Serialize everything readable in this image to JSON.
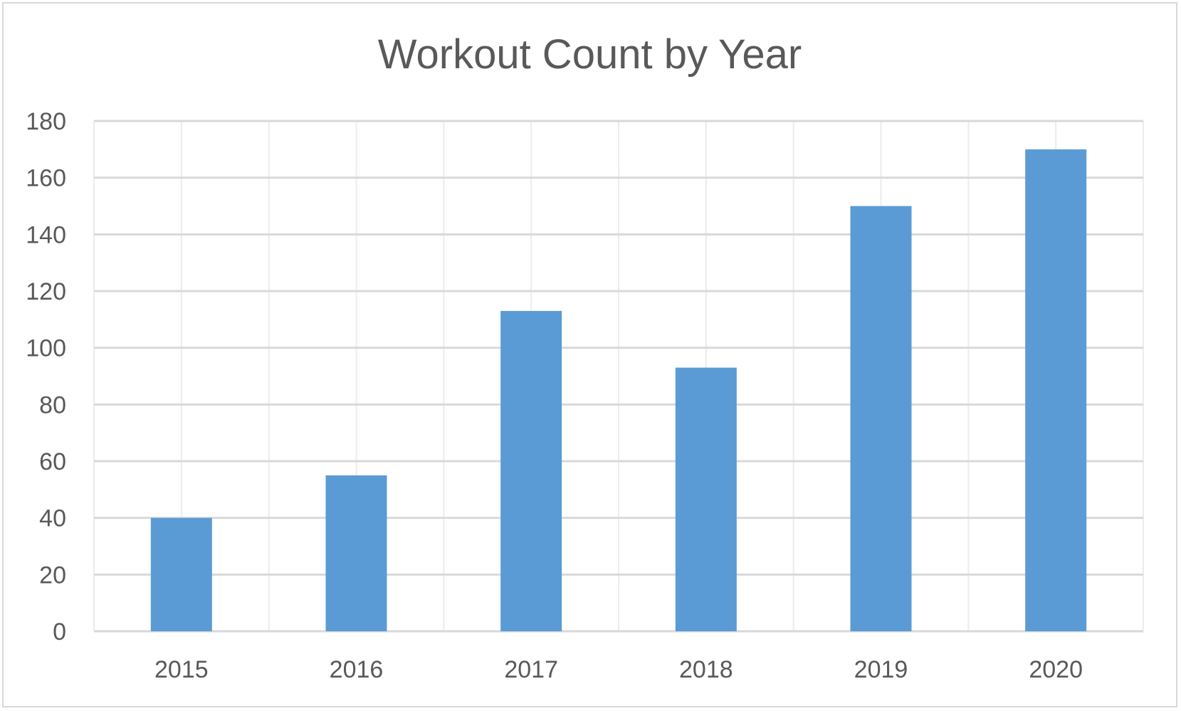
{
  "chart_data": {
    "type": "bar",
    "title": "Workout Count by Year",
    "xlabel": "",
    "ylabel": "",
    "categories": [
      "2015",
      "2016",
      "2017",
      "2018",
      "2019",
      "2020"
    ],
    "values": [
      40,
      55,
      113,
      93,
      150,
      170
    ],
    "ylim": [
      0,
      180
    ],
    "yticks": [
      0,
      20,
      40,
      60,
      80,
      100,
      120,
      140,
      160,
      180
    ],
    "grid": true,
    "legend": "none",
    "colors": {
      "bar": "#5b9bd5",
      "grid": "#d9d9d9",
      "text": "#595959",
      "border": "#d9d9d9"
    }
  }
}
